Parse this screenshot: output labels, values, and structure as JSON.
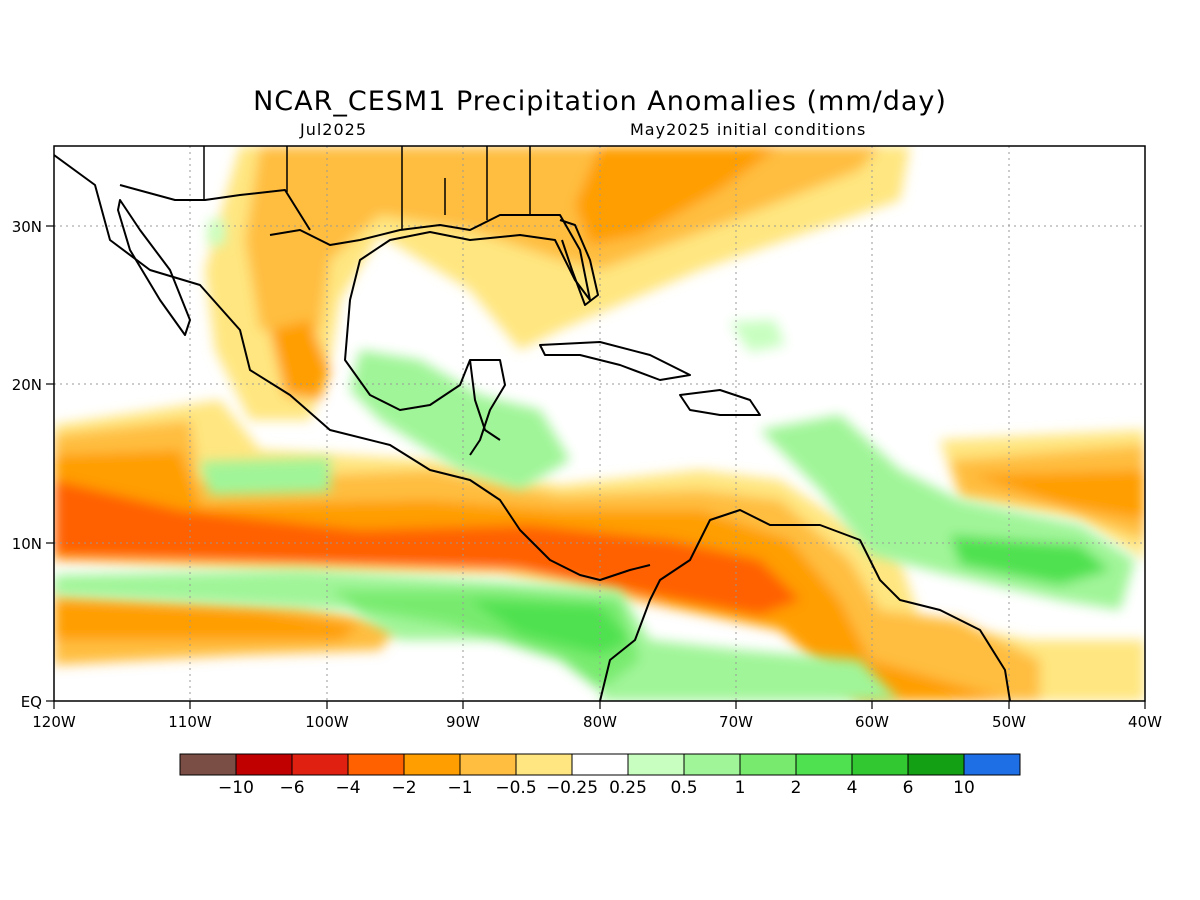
{
  "title": "NCAR_CESM1 Precipitation Anomalies (mm/day)",
  "subtitle_left": "Jul2025",
  "subtitle_right": "May2025 initial conditions",
  "map": {
    "lon_range": [
      -120,
      -40
    ],
    "lat_range": [
      0,
      35
    ],
    "x_ticks": [
      {
        "lon": -120,
        "label": "120W"
      },
      {
        "lon": -110,
        "label": "110W"
      },
      {
        "lon": -100,
        "label": "100W"
      },
      {
        "lon": -90,
        "label": "90W"
      },
      {
        "lon": -80,
        "label": "80W"
      },
      {
        "lon": -70,
        "label": "70W"
      },
      {
        "lon": -60,
        "label": "60W"
      },
      {
        "lon": -50,
        "label": "50W"
      },
      {
        "lon": -40,
        "label": "40W"
      }
    ],
    "y_ticks": [
      {
        "lat": 0,
        "label": "EQ"
      },
      {
        "lat": 10,
        "label": "10N"
      },
      {
        "lat": 20,
        "label": "20N"
      },
      {
        "lat": 30,
        "label": "30N"
      }
    ],
    "grid": "dotted"
  },
  "colorbar": {
    "colors": [
      "#7a4e44",
      "#c00000",
      "#e02010",
      "#ff6000",
      "#ff9e00",
      "#ffbe40",
      "#ffe680",
      "#ffffff",
      "#c8ffc0",
      "#a0f598",
      "#78eb6e",
      "#50e150",
      "#32c832",
      "#14a014",
      "#1e6ee6"
    ],
    "labels": [
      "−10",
      "−6",
      "−4",
      "−2",
      "−1",
      "−0.5",
      "−0.25",
      "0.25",
      "0.5",
      "1",
      "2",
      "4",
      "6",
      "10"
    ]
  },
  "colors": {
    "dry_strong": "#ff6000",
    "dry_moderate": "#ff9e00",
    "dry_light": "#ffbe40",
    "dry_weak": "#ffe680",
    "wet_weak": "#c8ffc0",
    "wet_light": "#a0f598",
    "wet_moderate": "#78eb6e",
    "wet_strong": "#50e150"
  }
}
